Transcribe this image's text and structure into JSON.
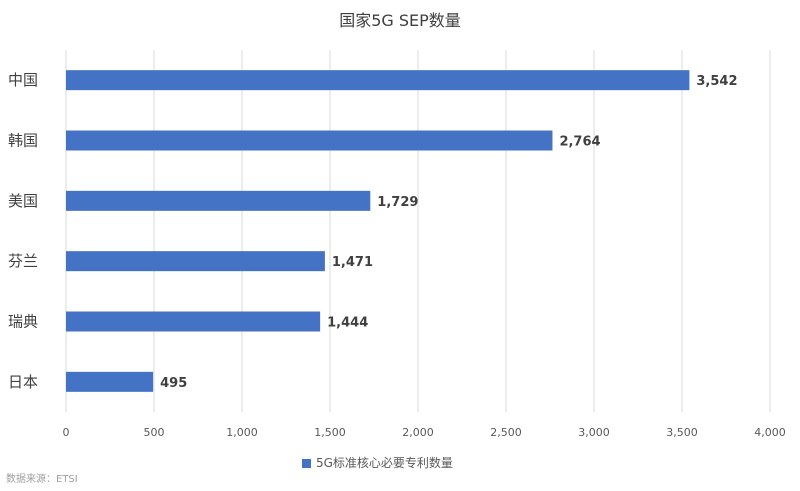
{
  "chart_data": {
    "type": "bar",
    "orientation": "horizontal",
    "title": "国家5G SEP数量",
    "categories": [
      "中国",
      "韩国",
      "美国",
      "芬兰",
      "瑞典",
      "日本"
    ],
    "series": [
      {
        "name": "5G标准核心必要专利数量",
        "values": [
          3542,
          2764,
          1729,
          1471,
          1444,
          495
        ],
        "labels": [
          "3,542",
          "2,764",
          "1,729",
          "1,471",
          "1,444",
          "495"
        ]
      }
    ],
    "xlim": [
      0,
      4000
    ],
    "xticks": [
      0,
      500,
      1000,
      1500,
      2000,
      2500,
      3000,
      3500,
      4000
    ],
    "xtick_labels": [
      "0",
      "500",
      "1,000",
      "1,500",
      "2,000",
      "2,500",
      "3,000",
      "3,500",
      "4,000"
    ],
    "grid": true,
    "legend_position": "bottom-center",
    "bar_color": "#4472C4"
  },
  "source_note": "数据来源：ETSI"
}
